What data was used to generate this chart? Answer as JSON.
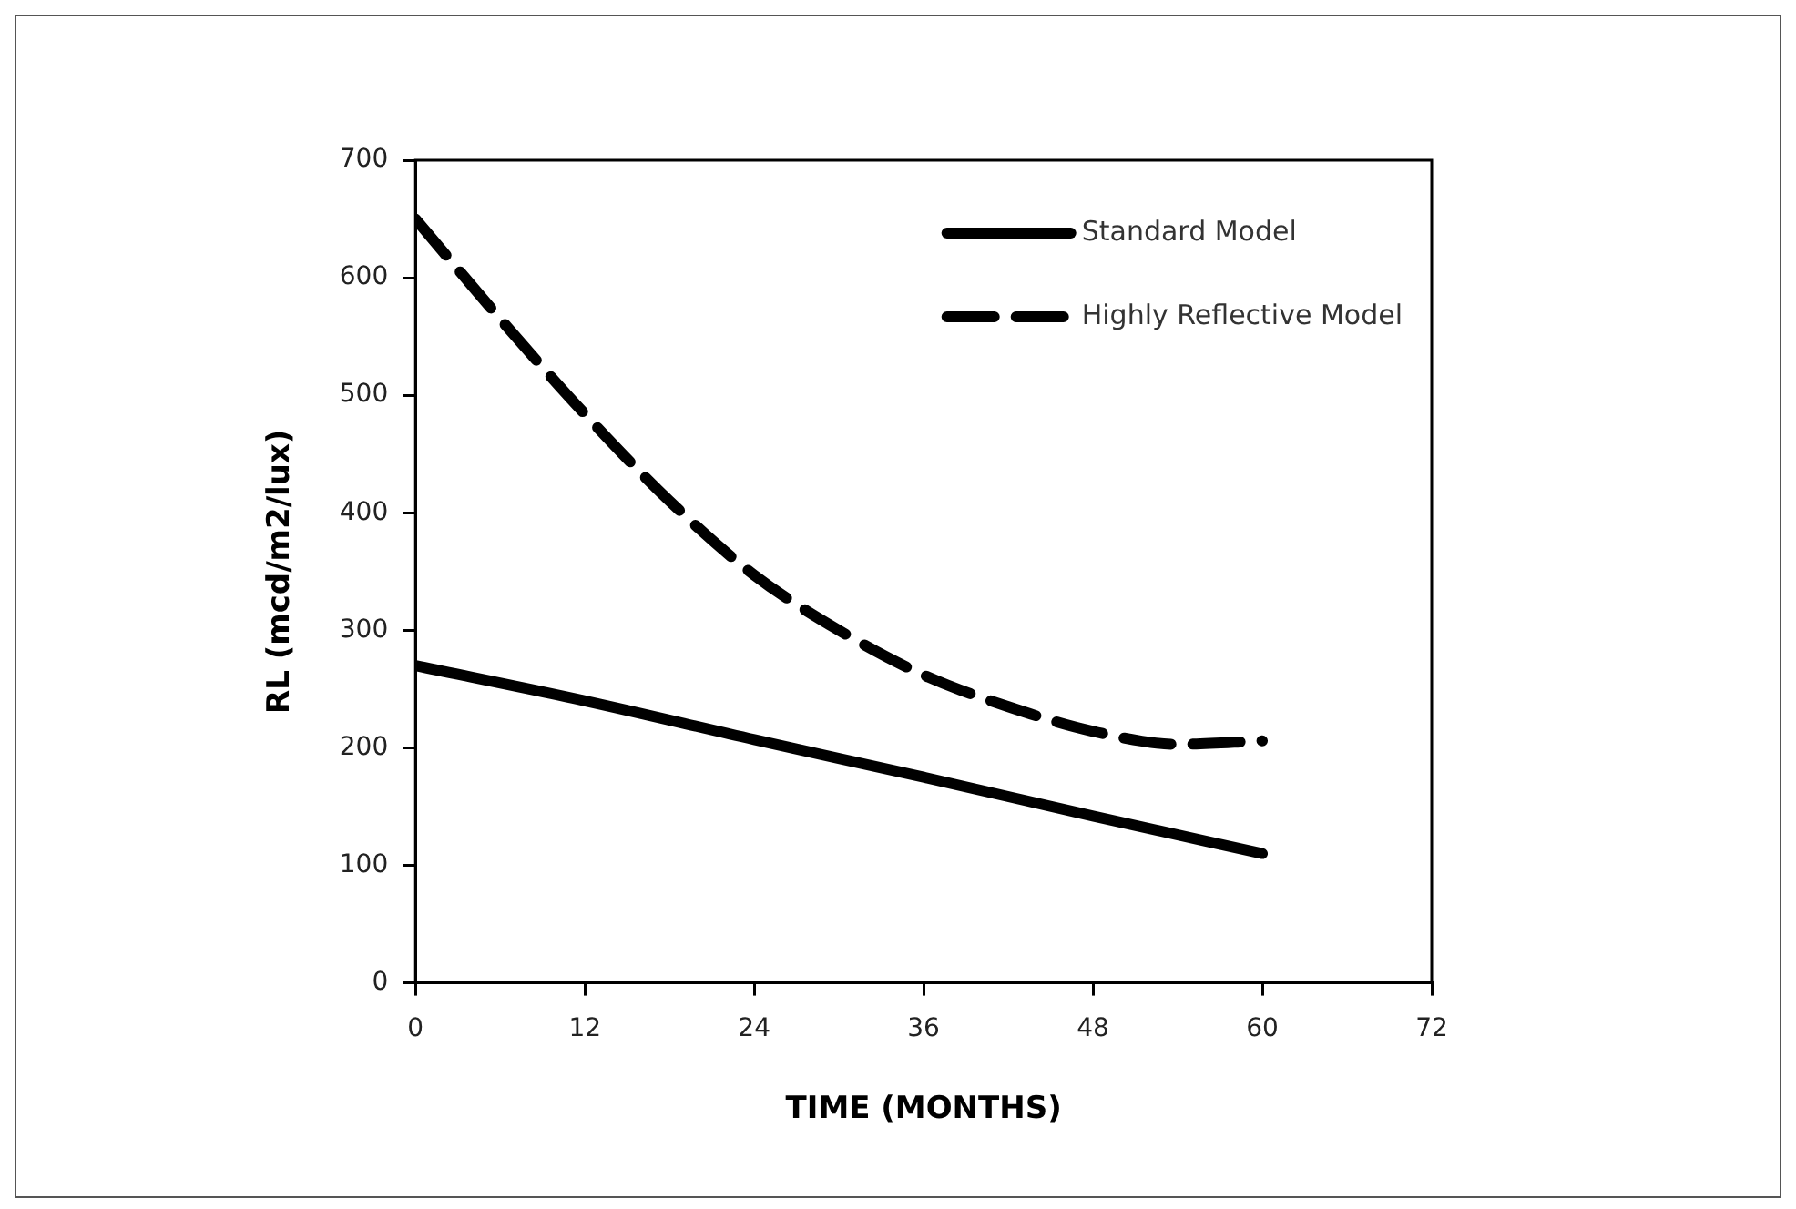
{
  "chart_data": {
    "type": "line",
    "xlabel": "TIME (MONTHS)",
    "ylabel": "RL (mcd/m2/lux)",
    "xlim": [
      0,
      72
    ],
    "xticks": [
      0,
      12,
      24,
      36,
      48,
      60,
      72
    ],
    "ylim": [
      0,
      700
    ],
    "yticks": [
      0,
      100,
      200,
      300,
      400,
      500,
      600,
      700
    ],
    "grid": false,
    "legend": "top right",
    "marker": "none",
    "series": [
      {
        "name": "Standard Model",
        "color": "#000000",
        "line_style": "solid",
        "x": [
          0,
          12,
          24,
          36,
          48,
          60
        ],
        "values": [
          270,
          240,
          207,
          175,
          142,
          110
        ]
      },
      {
        "name": "Highly Reflective Model",
        "color": "#000000",
        "line_style": "dashed",
        "x": [
          0,
          6,
          12,
          18,
          24,
          30,
          36,
          42,
          48,
          54,
          60
        ],
        "values": [
          650,
          565,
          484,
          410,
          347,
          300,
          262,
          235,
          214,
          203,
          206
        ]
      }
    ]
  }
}
